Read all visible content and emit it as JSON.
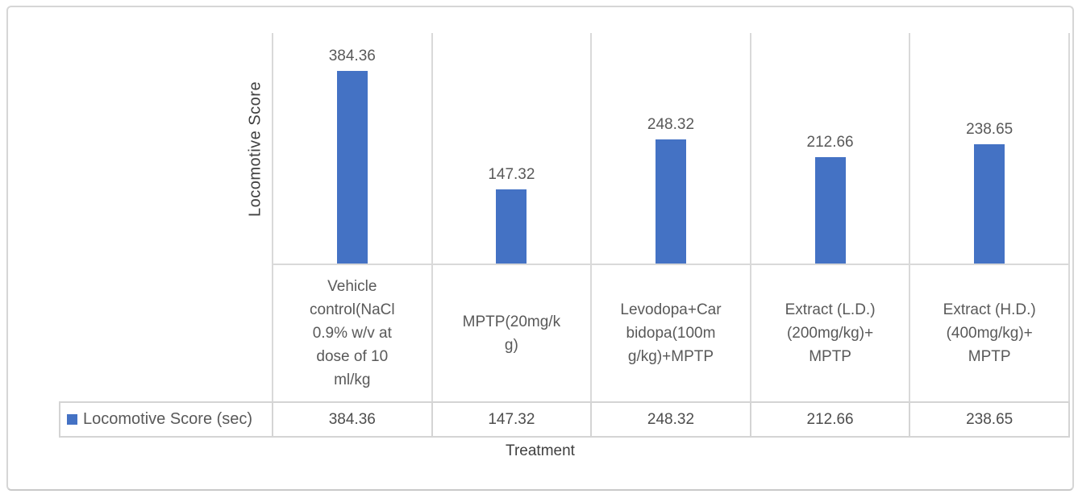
{
  "chart_data": {
    "type": "bar",
    "title": "",
    "xlabel": "Treatment",
    "ylabel": "Locomotive Score",
    "ylim": [
      0,
      460
    ],
    "grid": "vertical-category-separators-only",
    "legend_position": "bottom-data-table-left",
    "bar_color": "#4472C4",
    "gridline_color": "#D9D9D9",
    "label_color": "#595959",
    "categories": [
      "Vehicle\ncontrol(NaCl\n0.9% w/v at\ndose of 10\nml/kg",
      "MPTP(20mg/k\ng)",
      "Levodopa+Car\nbidopa(100m\ng/kg)+MPTP",
      "Extract (L.D.)\n(200mg/kg)+\nMPTP",
      "Extract (H.D.)\n(400mg/kg)+\nMPTP"
    ],
    "series": [
      {
        "name": "Locomotive Score (sec)",
        "values": [
          384.36,
          147.32,
          248.32,
          212.66,
          238.65
        ]
      }
    ],
    "values": [
      384.36,
      147.32,
      248.32,
      212.66,
      238.65
    ],
    "value_labels": [
      "384.36",
      "147.32",
      "248.32",
      "212.66",
      "238.65"
    ],
    "data_table": {
      "legend_label": "Locomotive Score (sec)",
      "values": [
        "384.36",
        "147.32",
        "248.32",
        "212.66",
        "238.65"
      ]
    }
  }
}
